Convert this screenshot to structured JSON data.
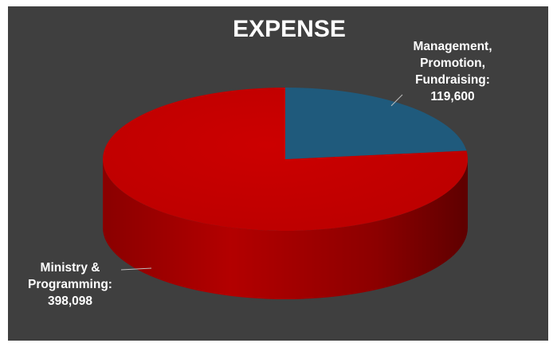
{
  "chart_data": {
    "type": "pie",
    "title": "EXPENSE",
    "slices": [
      {
        "name": "Management, Promotion, Fundraising",
        "value": 119600,
        "label_lines": [
          "Management,",
          "Promotion,",
          "Fundraising:",
          "119,600"
        ],
        "color": "#1f5a7c"
      },
      {
        "name": "Ministry & Programming",
        "value": 398098,
        "label_lines": [
          "Ministry &",
          "Programming:",
          "398,098"
        ],
        "color": "#c00000"
      }
    ],
    "style": "3d",
    "background": "#3f3f3f"
  }
}
